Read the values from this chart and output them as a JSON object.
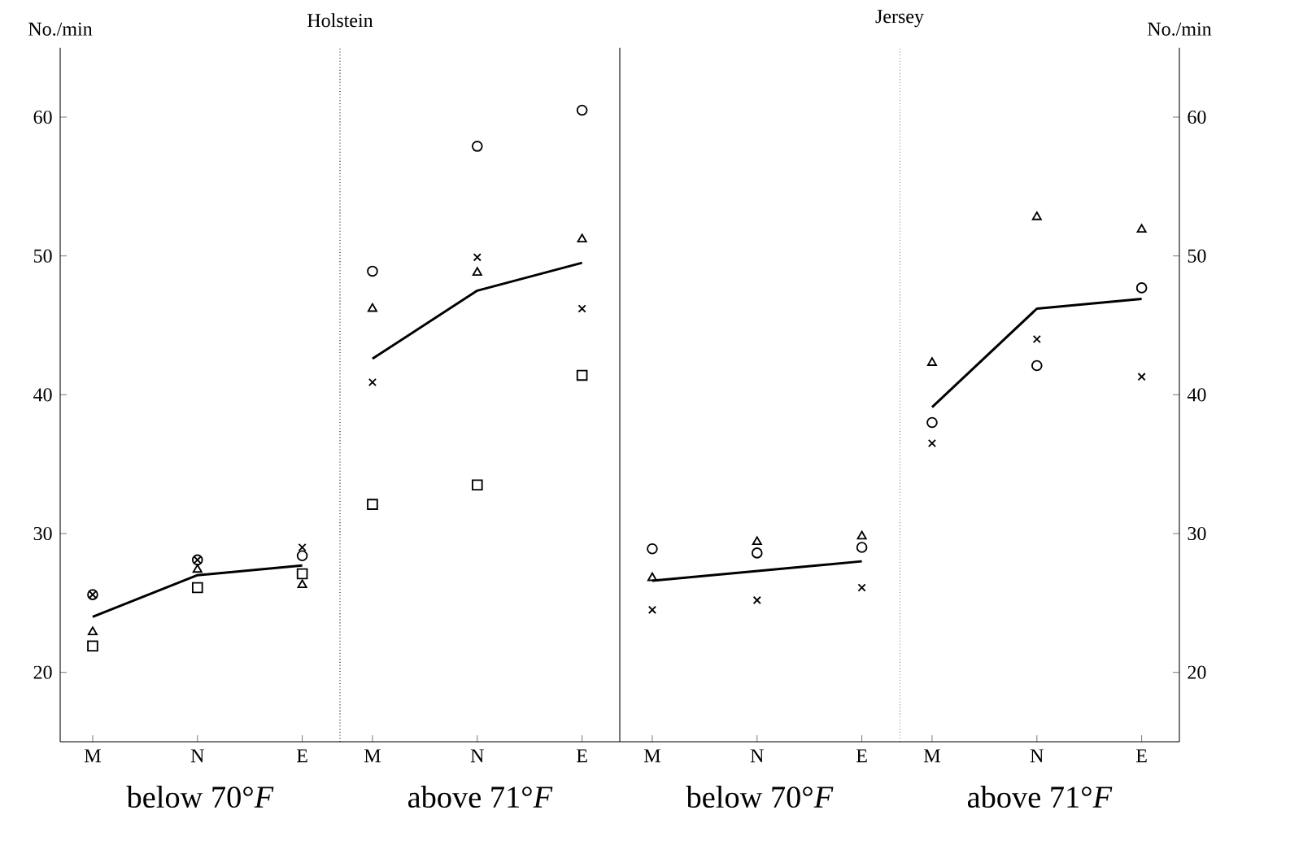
{
  "chart_data": [
    {
      "type": "scatter",
      "title": "Holstein",
      "xlabel": "below 70°*F*",
      "ylabel": "No./min",
      "categories": [
        "M",
        "N",
        "E"
      ],
      "ylim": [
        15,
        65
      ],
      "yticks": [
        20,
        30,
        40,
        50,
        60
      ],
      "series": [
        {
          "color": "#000000",
          "marker": "circle",
          "values": [
            25.6,
            28.1,
            28.4
          ]
        },
        {
          "color": "#000000",
          "marker": "triangle",
          "values": [
            22.9,
            27.4,
            26.3
          ]
        },
        {
          "color": "#000000",
          "marker": "cross",
          "values": [
            25.6,
            28.1,
            29.0
          ]
        },
        {
          "color": "#000000",
          "marker": "square",
          "values": [
            21.9,
            26.1,
            27.1
          ]
        },
        {
          "type": "line",
          "color": "#000000",
          "values": [
            24.0,
            27.0,
            27.7
          ]
        }
      ]
    },
    {
      "type": "scatter",
      "xlabel": "above 71°*F*",
      "categories": [
        "M",
        "N",
        "E"
      ],
      "ylim": [
        15,
        65
      ],
      "tick_labels": "x",
      "series": [
        {
          "color": "#000000",
          "marker": "circle",
          "values": [
            48.9,
            57.9,
            60.5
          ]
        },
        {
          "color": "#000000",
          "marker": "triangle",
          "values": [
            46.2,
            48.8,
            51.2
          ]
        },
        {
          "color": "#000000",
          "marker": "cross",
          "values": [
            40.9,
            49.9,
            46.2
          ]
        },
        {
          "color": "#000000",
          "marker": "square",
          "values": [
            32.1,
            33.5,
            41.4
          ]
        },
        {
          "type": "line",
          "color": "#000000",
          "values": [
            42.6,
            47.5,
            49.5
          ]
        }
      ]
    },
    {
      "type": "scatter",
      "title": "Jersey",
      "xlabel": "below 70°*F*",
      "categories": [
        "M",
        "N",
        "E"
      ],
      "ylim": [
        15,
        65
      ],
      "tick_labels": "x",
      "series": [
        {
          "color": "#000000",
          "marker": "circle",
          "values": [
            28.9,
            28.6,
            29.0
          ]
        },
        {
          "color": "#000000",
          "marker": "triangle",
          "values": [
            26.8,
            29.4,
            29.8
          ]
        },
        {
          "color": "#000000",
          "marker": "cross",
          "values": [
            24.5,
            25.2,
            26.1
          ]
        },
        {
          "type": "line",
          "color": "#000000",
          "values": [
            26.6,
            27.3,
            28.0
          ]
        }
      ]
    },
    {
      "type": "scatter",
      "xlabel": "above 71°*F*",
      "ylabel": "No./min",
      "categories": [
        "M",
        "N",
        "E"
      ],
      "ylim": [
        15,
        65
      ],
      "yticks": [
        20,
        30,
        40,
        50,
        60
      ],
      "series": [
        {
          "color": "#000000",
          "marker": "circle",
          "values": [
            38.0,
            42.1,
            47.7
          ]
        },
        {
          "color": "#000000",
          "marker": "triangle",
          "values": [
            42.3,
            52.8,
            51.9
          ]
        },
        {
          "color": "#000000",
          "marker": "cross",
          "values": [
            36.5,
            44.0,
            41.3
          ]
        },
        {
          "type": "line",
          "color": "#000000",
          "values": [
            39.1,
            46.2,
            46.9
          ]
        }
      ]
    }
  ]
}
